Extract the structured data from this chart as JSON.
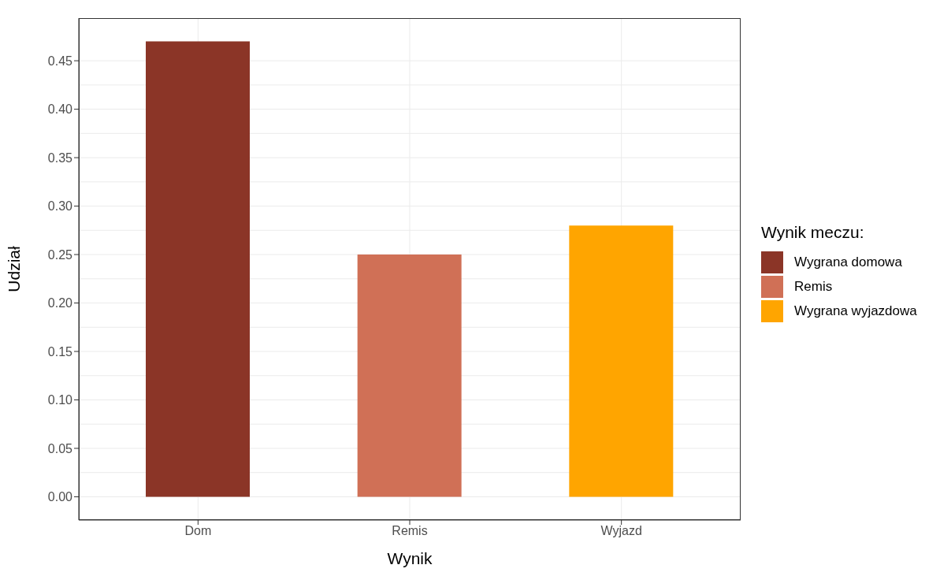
{
  "chart_data": {
    "type": "bar",
    "xlabel": "Wynik",
    "ylabel": "Udział",
    "legend_title": "Wynik meczu:",
    "categories": [
      "Dom",
      "Remis",
      "Wyjazd"
    ],
    "series": [
      {
        "name": "Wygrana domowa",
        "color": "#8b3527",
        "values": [
          0.47,
          null,
          null
        ]
      },
      {
        "name": "Remis",
        "color": "#d07056",
        "values": [
          null,
          0.25,
          null
        ]
      },
      {
        "name": "Wygrana wyjazdowa",
        "color": "#ffa500",
        "values": [
          null,
          null,
          0.28
        ]
      }
    ],
    "stacked": true,
    "ylim": [
      -0.024,
      0.494
    ],
    "yticks": [
      {
        "value": 0,
        "label": "0.00"
      },
      {
        "value": 0.05,
        "label": "0.05"
      },
      {
        "value": 0.1,
        "label": "0.10"
      },
      {
        "value": 0.15,
        "label": "0.15"
      },
      {
        "value": 0.2,
        "label": "0.20"
      },
      {
        "value": 0.25,
        "label": "0.25"
      },
      {
        "value": 0.3,
        "label": "0.30"
      },
      {
        "value": 0.35,
        "label": "0.35"
      },
      {
        "value": 0.4,
        "label": "0.40"
      },
      {
        "value": 0.45,
        "label": "0.45"
      }
    ],
    "grid": true,
    "legend": "right"
  }
}
